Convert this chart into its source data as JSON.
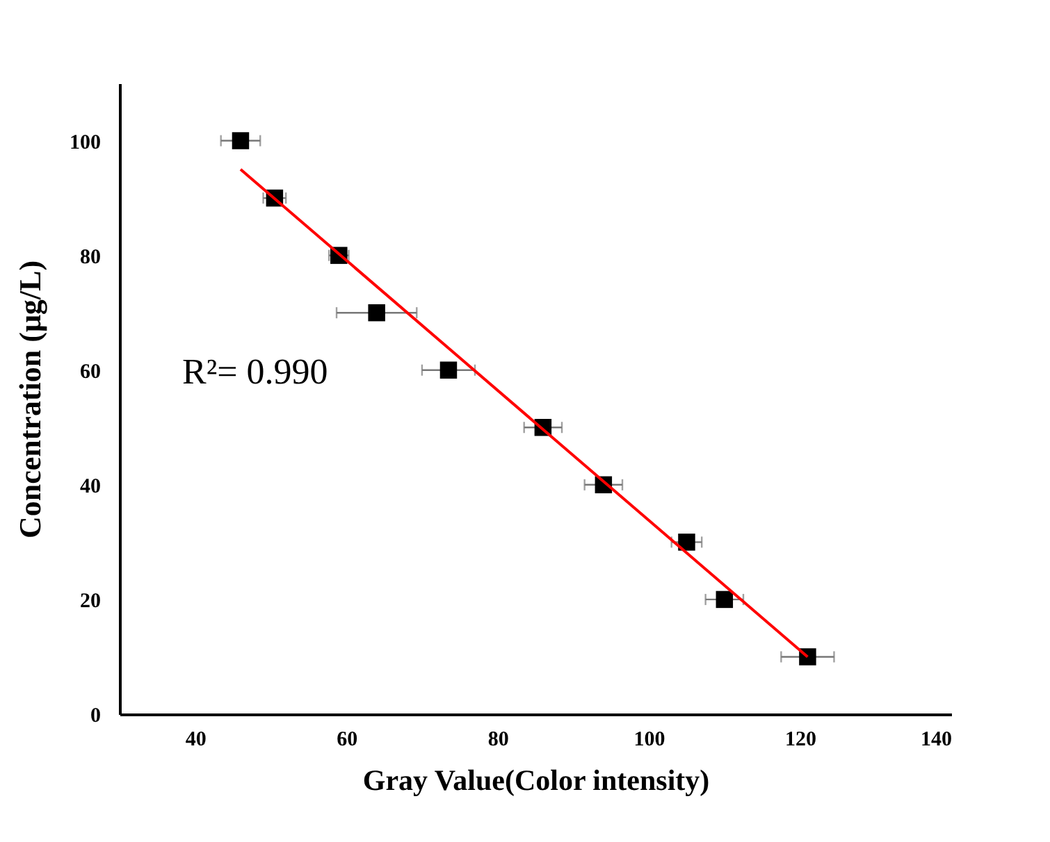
{
  "chart_data": {
    "type": "scatter",
    "xlabel": "Gray Value(Color intensity)",
    "ylabel": "Concentration (μg/L)",
    "xlim": [
      30,
      140
    ],
    "xticks": [
      40,
      60,
      80,
      100,
      120,
      140
    ],
    "ylim": [
      0,
      110
    ],
    "yticks": [
      0,
      20,
      40,
      60,
      80,
      100
    ],
    "grid": false,
    "series": [
      {
        "color": "#000000",
        "marker": "square",
        "x": [
          46,
          50.5,
          59,
          64,
          73.5,
          86,
          94,
          105,
          110,
          121
        ],
        "values": [
          100,
          90,
          80,
          70,
          60,
          50,
          40,
          30,
          20,
          10
        ],
        "xerrors": [
          2.6,
          1.5,
          1.3,
          5.3,
          3.5,
          2.5,
          2.5,
          2,
          2.5,
          3.5
        ]
      },
      {
        "type": "line",
        "color": "#ff0000",
        "marker": "none",
        "x": [
          46,
          121
        ],
        "values": [
          95,
          10
        ]
      }
    ],
    "annotations": [
      "R²= 0.990"
    ]
  }
}
